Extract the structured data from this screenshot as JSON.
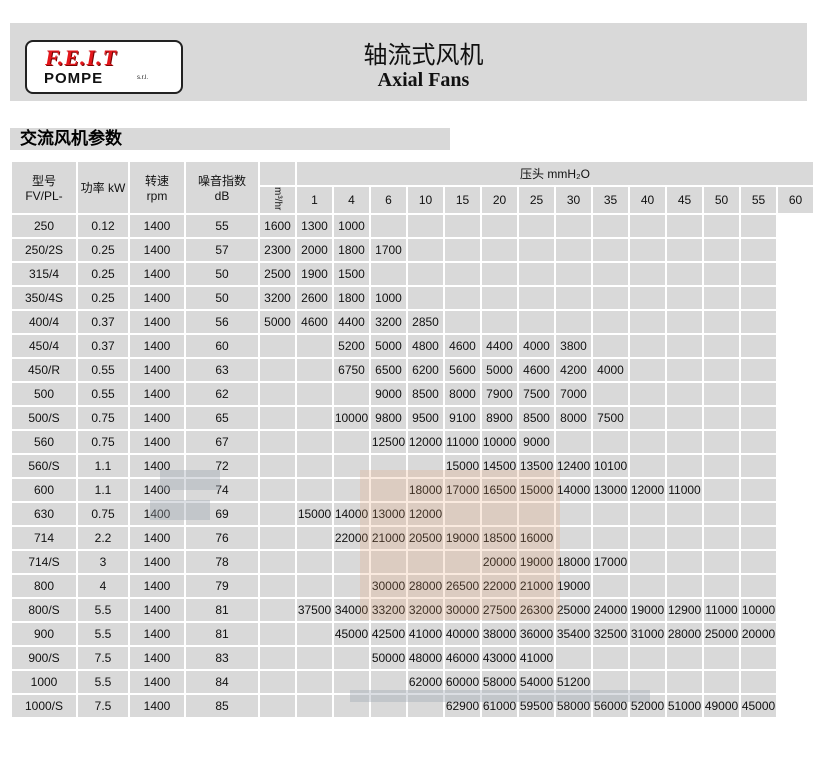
{
  "header": {
    "logo_brand": "F.E.I.T",
    "logo_sub": "POMPE",
    "logo_suffix": "s.r.l.",
    "title_cn": "轴流式风机",
    "title_en": "Axial Fans"
  },
  "section_title": "交流风机参数",
  "table": {
    "col_model": "型号",
    "col_model_sub": "FV/PL-",
    "col_power": "功率 kW",
    "col_speed": "转速",
    "col_speed_sub": "rpm",
    "col_noise": "噪音指数",
    "col_noise_sub": "dB",
    "pressure_header": "压头 mmH₂O",
    "flow_unit": "m³/hr",
    "pressures": [
      "1",
      "4",
      "6",
      "10",
      "15",
      "20",
      "25",
      "30",
      "35",
      "40",
      "45",
      "50",
      "55",
      "60"
    ],
    "rows": [
      {
        "model": "250",
        "kw": "0.12",
        "rpm": "1400",
        "db": "55",
        "flows": [
          "1600",
          "1300",
          "1000",
          "",
          "",
          "",
          "",
          "",
          "",
          "",
          "",
          "",
          "",
          ""
        ]
      },
      {
        "model": "250/2S",
        "kw": "0.25",
        "rpm": "1400",
        "db": "57",
        "flows": [
          "2300",
          "2000",
          "1800",
          "1700",
          "",
          "",
          "",
          "",
          "",
          "",
          "",
          "",
          "",
          ""
        ]
      },
      {
        "model": "315/4",
        "kw": "0.25",
        "rpm": "1400",
        "db": "50",
        "flows": [
          "2500",
          "1900",
          "1500",
          "",
          "",
          "",
          "",
          "",
          "",
          "",
          "",
          "",
          "",
          ""
        ]
      },
      {
        "model": "350/4S",
        "kw": "0.25",
        "rpm": "1400",
        "db": "50",
        "flows": [
          "3200",
          "2600",
          "1800",
          "1000",
          "",
          "",
          "",
          "",
          "",
          "",
          "",
          "",
          "",
          ""
        ]
      },
      {
        "model": "400/4",
        "kw": "0.37",
        "rpm": "1400",
        "db": "56",
        "flows": [
          "5000",
          "4600",
          "4400",
          "3200",
          "2850",
          "",
          "",
          "",
          "",
          "",
          "",
          "",
          "",
          ""
        ]
      },
      {
        "model": "450/4",
        "kw": "0.37",
        "rpm": "1400",
        "db": "60",
        "flows": [
          "",
          "",
          "5200",
          "5000",
          "4800",
          "4600",
          "4400",
          "4000",
          "3800",
          "",
          "",
          "",
          "",
          ""
        ]
      },
      {
        "model": "450/R",
        "kw": "0.55",
        "rpm": "1400",
        "db": "63",
        "flows": [
          "",
          "",
          "6750",
          "6500",
          "6200",
          "5600",
          "5000",
          "4600",
          "4200",
          "4000",
          "",
          "",
          "",
          ""
        ]
      },
      {
        "model": "500",
        "kw": "0.55",
        "rpm": "1400",
        "db": "62",
        "flows": [
          "",
          "",
          "",
          "9000",
          "8500",
          "8000",
          "7900",
          "7500",
          "7000",
          "",
          "",
          "",
          "",
          ""
        ]
      },
      {
        "model": "500/S",
        "kw": "0.75",
        "rpm": "1400",
        "db": "65",
        "flows": [
          "",
          "",
          "10000",
          "9800",
          "9500",
          "9100",
          "8900",
          "8500",
          "8000",
          "7500",
          "",
          "",
          "",
          ""
        ]
      },
      {
        "model": "560",
        "kw": "0.75",
        "rpm": "1400",
        "db": "67",
        "flows": [
          "",
          "",
          "",
          "12500",
          "12000",
          "11000",
          "10000",
          "9000",
          "",
          "",
          "",
          "",
          "",
          ""
        ]
      },
      {
        "model": "560/S",
        "kw": "1.1",
        "rpm": "1400",
        "db": "72",
        "flows": [
          "",
          "",
          "",
          "",
          "",
          "15000",
          "14500",
          "13500",
          "12400",
          "10100",
          "",
          "",
          "",
          ""
        ]
      },
      {
        "model": "600",
        "kw": "1.1",
        "rpm": "1400",
        "db": "74",
        "flows": [
          "",
          "",
          "",
          "",
          "18000",
          "17000",
          "16500",
          "15000",
          "14000",
          "13000",
          "12000",
          "11000",
          "",
          ""
        ]
      },
      {
        "model": "630",
        "kw": "0.75",
        "rpm": "1400",
        "db": "69",
        "flows": [
          "",
          "15000",
          "14000",
          "13000",
          "12000",
          "",
          "",
          "",
          "",
          "",
          "",
          "",
          "",
          ""
        ]
      },
      {
        "model": "714",
        "kw": "2.2",
        "rpm": "1400",
        "db": "76",
        "flows": [
          "",
          "",
          "22000",
          "21000",
          "20500",
          "19000",
          "18500",
          "16000",
          "",
          "",
          "",
          "",
          "",
          ""
        ]
      },
      {
        "model": "714/S",
        "kw": "3",
        "rpm": "1400",
        "db": "78",
        "flows": [
          "",
          "",
          "",
          "",
          "",
          "",
          "20000",
          "19000",
          "18000",
          "17000",
          "",
          "",
          "",
          ""
        ]
      },
      {
        "model": "800",
        "kw": "4",
        "rpm": "1400",
        "db": "79",
        "flows": [
          "",
          "",
          "",
          "30000",
          "28000",
          "26500",
          "22000",
          "21000",
          "19000",
          "",
          "",
          "",
          "",
          ""
        ]
      },
      {
        "model": "800/S",
        "kw": "5.5",
        "rpm": "1400",
        "db": "81",
        "flows": [
          "",
          "37500",
          "34000",
          "33200",
          "32000",
          "30000",
          "27500",
          "26300",
          "25000",
          "24000",
          "19000",
          "12900",
          "11000",
          "10000"
        ]
      },
      {
        "model": "900",
        "kw": "5.5",
        "rpm": "1400",
        "db": "81",
        "flows": [
          "",
          "",
          "45000",
          "42500",
          "41000",
          "40000",
          "38000",
          "36000",
          "35400",
          "32500",
          "31000",
          "28000",
          "25000",
          "20000"
        ]
      },
      {
        "model": "900/S",
        "kw": "7.5",
        "rpm": "1400",
        "db": "83",
        "flows": [
          "",
          "",
          "",
          "50000",
          "48000",
          "46000",
          "43000",
          "41000",
          "",
          "",
          "",
          "",
          "",
          ""
        ]
      },
      {
        "model": "1000",
        "kw": "5.5",
        "rpm": "1400",
        "db": "84",
        "flows": [
          "",
          "",
          "",
          "",
          "62000",
          "60000",
          "58000",
          "54000",
          "51200",
          "",
          "",
          "",
          "",
          ""
        ]
      },
      {
        "model": "1000/S",
        "kw": "7.5",
        "rpm": "1400",
        "db": "85",
        "flows": [
          "",
          "",
          "",
          "",
          "",
          "62900",
          "61000",
          "59500",
          "58000",
          "56000",
          "52000",
          "51000",
          "49000",
          "45000"
        ]
      }
    ]
  },
  "colors": {
    "cell_bg": "#d9d9d9",
    "logo_red": "#e4161b",
    "watermark_orange": "#e8a06a",
    "watermark_grey": "#9aa3b0"
  }
}
